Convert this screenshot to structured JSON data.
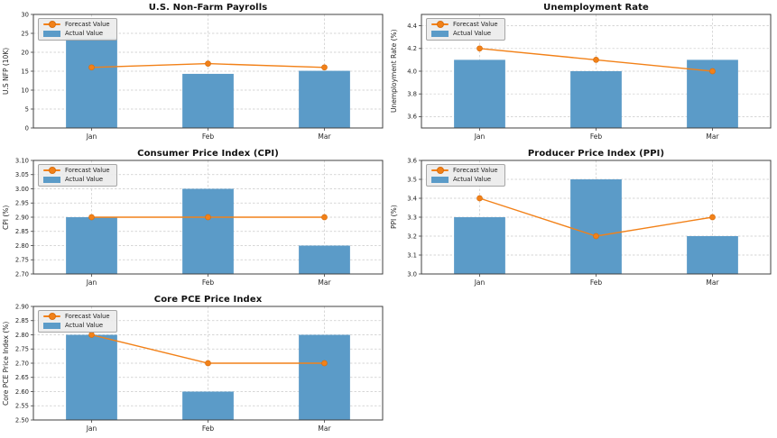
{
  "legend": {
    "forecast_label": "Forecast Value",
    "actual_label": "Actual Value"
  },
  "colors": {
    "bar": "#5b9bc8",
    "forecast": "#f28118",
    "forecast_edge": "#d96f10",
    "grid": "#c9c9c9",
    "spine": "#404040",
    "text": "#262626",
    "title": "#111111",
    "legend_bg": "#ebebeb",
    "legend_border": "#a6a6a6",
    "background": "#ffffff"
  },
  "chart_data": [
    {
      "type": "bar",
      "title": "U.S. Non-Farm Payrolls",
      "ylabel": "U.S NFP (10K)",
      "xlabel": "",
      "categories": [
        "Jan",
        "Feb",
        "Mar"
      ],
      "series": [
        {
          "name": "Forecast Value",
          "style": "line",
          "values": [
            16,
            17,
            16
          ]
        },
        {
          "name": "Actual Value",
          "style": "bar",
          "values": [
            23.7,
            14.3,
            15.1
          ]
        }
      ],
      "ylim": [
        0,
        30
      ],
      "yticks": [
        0,
        5,
        10,
        15,
        20,
        25,
        30
      ],
      "tick_decimals": 0,
      "grid": true,
      "legend_position": "upper-left"
    },
    {
      "type": "bar",
      "title": "Unemployment Rate",
      "ylabel": "Unemployment Rate (%)",
      "xlabel": "",
      "categories": [
        "Jan",
        "Feb",
        "Mar"
      ],
      "series": [
        {
          "name": "Forecast Value",
          "style": "line",
          "values": [
            4.2,
            4.1,
            4.0
          ]
        },
        {
          "name": "Actual Value",
          "style": "bar",
          "values": [
            4.1,
            4.0,
            4.1
          ]
        }
      ],
      "ylim": [
        3.5,
        4.5
      ],
      "yticks": [
        3.6,
        3.8,
        4.0,
        4.2,
        4.4
      ],
      "tick_decimals": 1,
      "grid": true,
      "legend_position": "upper-left"
    },
    {
      "type": "bar",
      "title": "Consumer Price Index (CPI)",
      "ylabel": "CPI (%)",
      "xlabel": "",
      "categories": [
        "Jan",
        "Feb",
        "Mar"
      ],
      "series": [
        {
          "name": "Forecast Value",
          "style": "line",
          "values": [
            2.9,
            2.9,
            2.9
          ]
        },
        {
          "name": "Actual Value",
          "style": "bar",
          "values": [
            2.9,
            3.0,
            2.8
          ]
        }
      ],
      "ylim": [
        2.7,
        3.1
      ],
      "yticks": [
        2.7,
        2.75,
        2.8,
        2.85,
        2.9,
        2.95,
        3.0,
        3.05,
        3.1
      ],
      "tick_decimals": 2,
      "grid": true,
      "legend_position": "upper-left"
    },
    {
      "type": "bar",
      "title": "Producer Price Index (PPI)",
      "ylabel": "PPI (%)",
      "xlabel": "",
      "categories": [
        "Jan",
        "Feb",
        "Mar"
      ],
      "series": [
        {
          "name": "Forecast Value",
          "style": "line",
          "values": [
            3.4,
            3.2,
            3.3
          ]
        },
        {
          "name": "Actual Value",
          "style": "bar",
          "values": [
            3.3,
            3.5,
            3.2
          ]
        }
      ],
      "ylim": [
        3.0,
        3.6
      ],
      "yticks": [
        3.0,
        3.1,
        3.2,
        3.3,
        3.4,
        3.5,
        3.6
      ],
      "tick_decimals": 1,
      "grid": true,
      "legend_position": "upper-left"
    },
    {
      "type": "bar",
      "title": "Core PCE Price Index",
      "ylabel": "Core PCE Price Index (%)",
      "xlabel": "",
      "categories": [
        "Jan",
        "Feb",
        "Mar"
      ],
      "series": [
        {
          "name": "Forecast Value",
          "style": "line",
          "values": [
            2.8,
            2.7,
            2.7
          ]
        },
        {
          "name": "Actual Value",
          "style": "bar",
          "values": [
            2.8,
            2.6,
            2.8
          ]
        }
      ],
      "ylim": [
        2.5,
        2.9
      ],
      "yticks": [
        2.5,
        2.55,
        2.6,
        2.65,
        2.7,
        2.75,
        2.8,
        2.85,
        2.9
      ],
      "tick_decimals": 2,
      "grid": true,
      "legend_position": "upper-left"
    }
  ]
}
